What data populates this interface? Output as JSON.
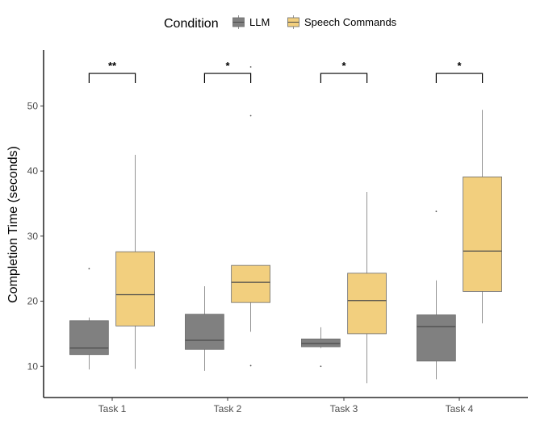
{
  "chart_data": {
    "type": "boxplot",
    "title": "",
    "xlabel": "",
    "ylabel": "Completion Time (seconds)",
    "ylim": [
      5.2,
      58.6
    ],
    "yticks": [
      10,
      20,
      30,
      40,
      50
    ],
    "legend": {
      "title": "Condition",
      "position": "top",
      "entries": [
        {
          "name": "LLM",
          "color": "#808080"
        },
        {
          "name": "Speech Commands",
          "color": "#F2CF7E"
        }
      ]
    },
    "categories": [
      "Task 1",
      "Task 2",
      "Task 3",
      "Task 4"
    ],
    "series": [
      {
        "name": "LLM",
        "color": "#808080",
        "boxes": [
          {
            "whisker_low": 9.5,
            "q1": 11.8,
            "median": 12.8,
            "q3": 17.0,
            "whisker_high": 17.5,
            "outliers": [
              25.0
            ]
          },
          {
            "whisker_low": 9.3,
            "q1": 12.6,
            "median": 14.0,
            "q3": 18.0,
            "whisker_high": 22.3,
            "outliers": []
          },
          {
            "whisker_low": 12.8,
            "q1": 13.0,
            "median": 13.5,
            "q3": 14.2,
            "whisker_high": 16.0,
            "outliers": [
              10.0
            ]
          },
          {
            "whisker_low": 8.0,
            "q1": 10.8,
            "median": 16.1,
            "q3": 17.9,
            "whisker_high": 23.2,
            "outliers": [
              33.8
            ]
          }
        ]
      },
      {
        "name": "Speech Commands",
        "color": "#F2CF7E",
        "boxes": [
          {
            "whisker_low": 9.6,
            "q1": 16.2,
            "median": 21.0,
            "q3": 27.6,
            "whisker_high": 42.5,
            "outliers": []
          },
          {
            "whisker_low": 15.3,
            "q1": 19.8,
            "median": 22.9,
            "q3": 25.5,
            "whisker_high": 25.5,
            "outliers": [
              10.1,
              48.5,
              56.0
            ]
          },
          {
            "whisker_low": 7.4,
            "q1": 15.0,
            "median": 20.1,
            "q3": 24.3,
            "whisker_high": 36.8,
            "outliers": []
          },
          {
            "whisker_low": 16.6,
            "q1": 21.5,
            "median": 27.7,
            "q3": 39.1,
            "whisker_high": 49.4,
            "outliers": []
          }
        ]
      }
    ],
    "significance": [
      {
        "category": "Task 1",
        "label": "**",
        "y": 55
      },
      {
        "category": "Task 2",
        "label": "*",
        "y": 55
      },
      {
        "category": "Task 3",
        "label": "*",
        "y": 55
      },
      {
        "category": "Task 4",
        "label": "*",
        "y": 55
      }
    ]
  }
}
